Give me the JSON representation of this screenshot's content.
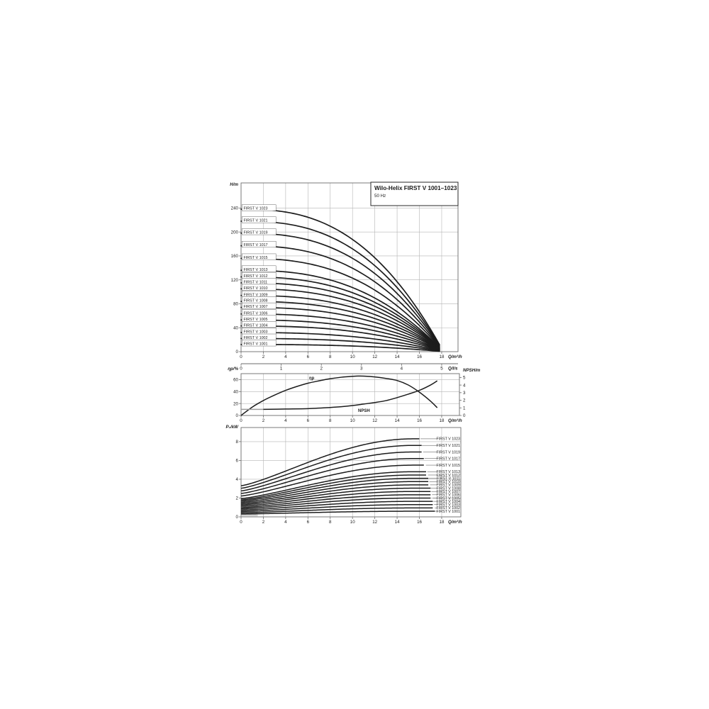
{
  "figure": {
    "title_box": {
      "title": "Wilo-Helix FIRST V 1001–1023",
      "subtitle": "50 Hz"
    },
    "colors": {
      "curve": "#1c1c1c",
      "grid": "#b4b4b4",
      "frame": "#6b6b6b",
      "text": "#1a1a1a",
      "grey_segment": "#9b9b9b",
      "grey_region": "#a9a9a9"
    },
    "ls_axis": {
      "label": "Q/l/s",
      "ticks": [
        0,
        1,
        2,
        3,
        4,
        5
      ],
      "m3h_per_unit": 3.6
    }
  },
  "chart_data": [
    {
      "type": "line",
      "id": "head",
      "title": "Wilo-Helix FIRST V 1001–1023, 50 Hz",
      "xlabel": "Q/m³/h",
      "ylabel": "H/m",
      "x_ticks": [
        0,
        2,
        4,
        6,
        8,
        10,
        12,
        14,
        16,
        18
      ],
      "y_ticks": [
        0,
        40,
        80,
        120,
        160,
        200,
        240
      ],
      "x_range": [
        0,
        19.5
      ],
      "y_range": [
        0,
        282
      ],
      "q_end": 17.8,
      "droop": 0.95,
      "exponent": 2.6,
      "series": [
        {
          "label": "FIRST V 1023",
          "h0": 238
        },
        {
          "label": "FIRST V 1021",
          "h0": 218
        },
        {
          "label": "FIRST V 1019",
          "h0": 198
        },
        {
          "label": "FIRST V 1017",
          "h0": 177
        },
        {
          "label": "FIRST V 1015",
          "h0": 156
        },
        {
          "label": "FIRST V 1013",
          "h0": 136
        },
        {
          "label": "FIRST V 1012",
          "h0": 125
        },
        {
          "label": "FIRST V 1011",
          "h0": 115
        },
        {
          "label": "FIRST V 1010",
          "h0": 105
        },
        {
          "label": "FIRST V 1009",
          "h0": 94
        },
        {
          "label": "FIRST V 1008",
          "h0": 84
        },
        {
          "label": "FIRST V 1007",
          "h0": 74
        },
        {
          "label": "FIRST V 1006",
          "h0": 63
        },
        {
          "label": "FIRST V 1005",
          "h0": 53
        },
        {
          "label": "FIRST V 1004",
          "h0": 43
        },
        {
          "label": "FIRST V 1003",
          "h0": 32
        },
        {
          "label": "FIRST V 1002",
          "h0": 22
        },
        {
          "label": "FIRST V 1001",
          "h0": 12
        }
      ]
    },
    {
      "type": "line",
      "id": "eff_npsh",
      "xlabel": "Q/m³/h",
      "ylabel_left": "ηp/%",
      "ylabel_right": "NPSH/m",
      "x_ticks": [
        0,
        2,
        4,
        6,
        8,
        10,
        12,
        14,
        16,
        18
      ],
      "left_ticks": [
        0,
        20,
        40,
        60
      ],
      "left_range": [
        0,
        70
      ],
      "right_ticks": [
        0,
        1,
        2,
        3,
        4,
        5
      ],
      "right_range": [
        0,
        5.5
      ],
      "eta": {
        "label": "ηp",
        "q": [
          0,
          1,
          2,
          3,
          4,
          5,
          6,
          7,
          8,
          9,
          10,
          10.5,
          11,
          12,
          13,
          14,
          15,
          16,
          17,
          17.6
        ],
        "v": [
          0,
          14,
          25,
          34,
          42,
          48.5,
          54,
          58,
          61.5,
          64,
          65.5,
          66,
          65.8,
          64.5,
          62,
          58.5,
          51,
          39,
          24,
          13
        ]
      },
      "npsh": {
        "label": "NPSH",
        "q": [
          0,
          2,
          4,
          6,
          8,
          9,
          10,
          11,
          12,
          13,
          14,
          15,
          16,
          17,
          17.6
        ],
        "v": [
          0.8,
          0.8,
          0.85,
          0.9,
          1.05,
          1.15,
          1.3,
          1.5,
          1.7,
          1.95,
          2.35,
          2.8,
          3.3,
          4.0,
          4.55
        ],
        "grey_to_q": 2
      }
    },
    {
      "type": "line",
      "id": "power",
      "xlabel": "Q/m³/h",
      "ylabel": "P₂/kW",
      "x_ticks": [
        0,
        2,
        4,
        6,
        8,
        10,
        12,
        14,
        16,
        18
      ],
      "y_ticks": [
        0,
        2,
        4,
        6,
        8
      ],
      "y_range": [
        0,
        9.5
      ],
      "q_sat": 15.5,
      "exponent": 1.25,
      "grey_region": {
        "q_to": 1.5,
        "p_to": 2.05
      },
      "series": [
        {
          "label": "FIRST V 1023",
          "stages": 23,
          "p0": 3.31,
          "p_end": 8.3
        },
        {
          "label": "FIRST V 1021",
          "stages": 21,
          "p0": 3.04,
          "p_end": 7.6
        },
        {
          "label": "FIRST V 1019",
          "stages": 19,
          "p0": 2.76,
          "p_end": 6.9
        },
        {
          "label": "FIRST V 1017",
          "stages": 17,
          "p0": 2.49,
          "p_end": 6.2
        },
        {
          "label": "FIRST V 1015",
          "stages": 15,
          "p0": 2.22,
          "p_end": 5.5
        },
        {
          "label": "FIRST V 1013",
          "stages": 13,
          "p0": 1.94,
          "p_end": 4.8
        },
        {
          "label": "FIRST V 1012",
          "stages": 12,
          "p0": 1.8,
          "p_end": 4.45
        },
        {
          "label": "FIRST V 1011",
          "stages": 11,
          "p0": 1.67,
          "p_end": 4.1
        },
        {
          "label": "FIRST V 1010",
          "stages": 10,
          "p0": 1.53,
          "p_end": 3.75
        },
        {
          "label": "FIRST V 1009",
          "stages": 9,
          "p0": 1.39,
          "p_end": 3.4
        },
        {
          "label": "FIRST V 1008",
          "stages": 8,
          "p0": 1.26,
          "p_end": 3.05
        },
        {
          "label": "FIRST V 1007",
          "stages": 7,
          "p0": 1.12,
          "p_end": 2.7
        },
        {
          "label": "FIRST V 1006",
          "stages": 6,
          "p0": 0.98,
          "p_end": 2.35
        },
        {
          "label": "FIRST V 1005",
          "stages": 5,
          "p0": 0.85,
          "p_end": 2.0
        },
        {
          "label": "FIRST V 1004",
          "stages": 4,
          "p0": 0.71,
          "p_end": 1.65
        },
        {
          "label": "FIRST V 1003",
          "stages": 3,
          "p0": 0.57,
          "p_end": 1.3
        },
        {
          "label": "FIRST V 1002",
          "stages": 2,
          "p0": 0.43,
          "p_end": 0.95
        },
        {
          "label": "FIRST V 1001",
          "stages": 1,
          "p0": 0.3,
          "p_end": 0.6
        }
      ]
    }
  ]
}
